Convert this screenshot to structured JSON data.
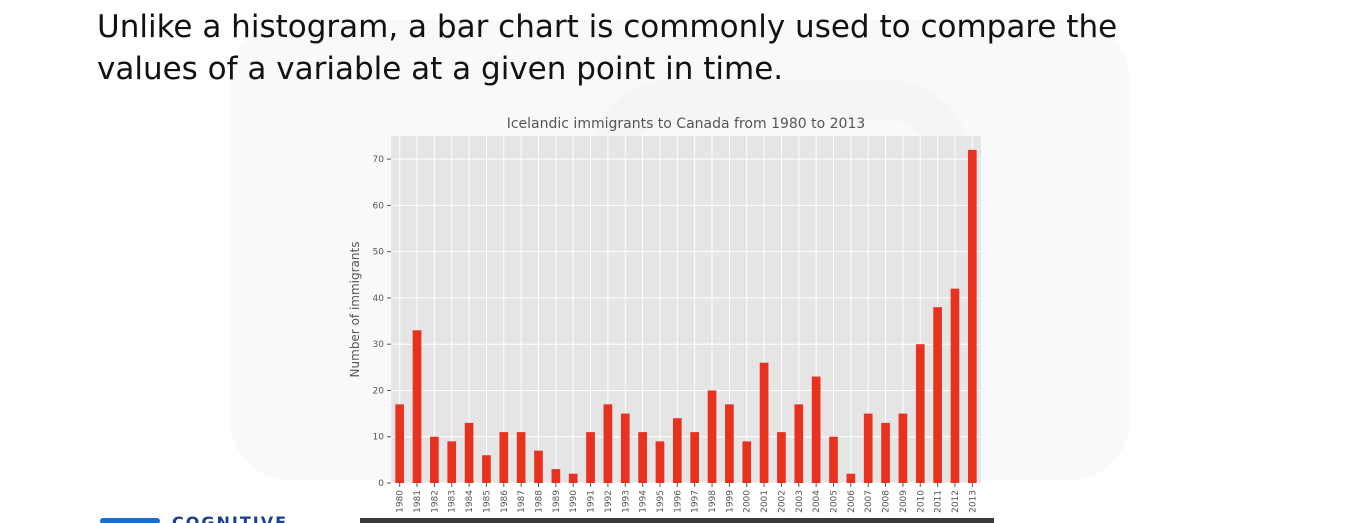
{
  "slide": {
    "text_line1": "Unlike a histogram, a bar chart is commonly used to compare the",
    "text_line2": "values of a variable at a given point in time."
  },
  "logo": {
    "text": "COGNITIVE"
  },
  "chart_data": {
    "type": "bar",
    "title": "Icelandic immigrants to Canada from 1980 to 2013",
    "xlabel": "",
    "ylabel": "Number of immigrants",
    "categories": [
      "1980",
      "1981",
      "1982",
      "1983",
      "1984",
      "1985",
      "1986",
      "1987",
      "1988",
      "1989",
      "1990",
      "1991",
      "1992",
      "1993",
      "1994",
      "1995",
      "1996",
      "1997",
      "1998",
      "1999",
      "2000",
      "2001",
      "2002",
      "2003",
      "2004",
      "2005",
      "2006",
      "2007",
      "2008",
      "2009",
      "2010",
      "2011",
      "2012",
      "2013"
    ],
    "values": [
      17,
      33,
      10,
      9,
      13,
      6,
      11,
      11,
      7,
      3,
      2,
      11,
      17,
      15,
      11,
      9,
      14,
      11,
      20,
      17,
      9,
      26,
      11,
      17,
      23,
      10,
      2,
      15,
      13,
      15,
      30,
      38,
      42,
      72
    ],
    "yticks": [
      0,
      10,
      20,
      30,
      40,
      50,
      60,
      70
    ],
    "ylim": [
      0,
      75
    ],
    "grid": true,
    "bar_color": "#e8311f",
    "plot_background": "#e5e5e5"
  }
}
